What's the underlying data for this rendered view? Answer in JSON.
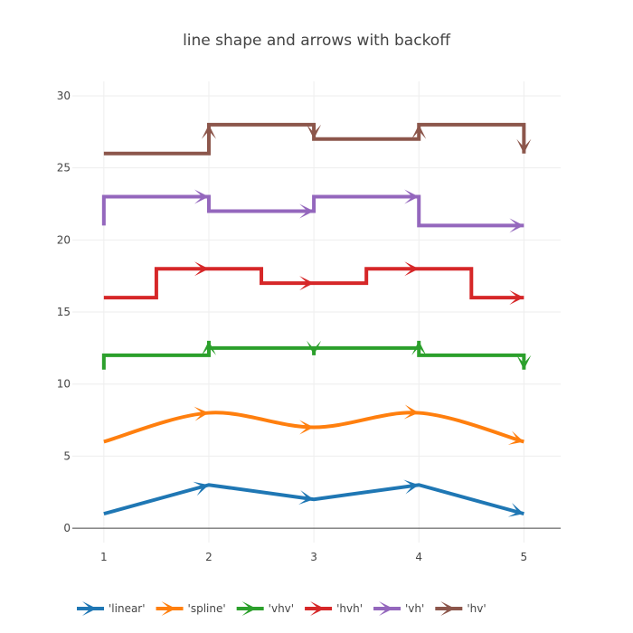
{
  "chart_data": {
    "type": "line",
    "title": "line shape and arrows with backoff",
    "xlabel": "",
    "ylabel": "",
    "xlim": [
      0.7,
      5.35
    ],
    "ylim": [
      -1,
      31
    ],
    "xticks": [
      1,
      2,
      3,
      4,
      5
    ],
    "yticks": [
      0,
      5,
      10,
      15,
      20,
      25,
      30
    ],
    "grid": true,
    "legend_position": "bottom-left, horizontal",
    "x": [
      1,
      2,
      3,
      4,
      5
    ],
    "series": [
      {
        "name": "'linear'",
        "shape": "linear",
        "color": "#1f77b4",
        "values": [
          1,
          3,
          2,
          3,
          1
        ]
      },
      {
        "name": "'spline'",
        "shape": "spline",
        "color": "#ff7f0e",
        "values": [
          6,
          8,
          7,
          8,
          6
        ]
      },
      {
        "name": "'vhv'",
        "shape": "vhv",
        "color": "#2ca02c",
        "values": [
          11,
          13,
          12,
          13,
          11
        ]
      },
      {
        "name": "'hvh'",
        "shape": "hvh",
        "color": "#d62728",
        "values": [
          16,
          18,
          17,
          18,
          16
        ]
      },
      {
        "name": "'vh'",
        "shape": "vh",
        "color": "#9467bd",
        "values": [
          21,
          23,
          22,
          23,
          21
        ]
      },
      {
        "name": "'hv'",
        "shape": "hv",
        "color": "#8c564b",
        "values": [
          26,
          28,
          27,
          28,
          26
        ]
      }
    ]
  }
}
